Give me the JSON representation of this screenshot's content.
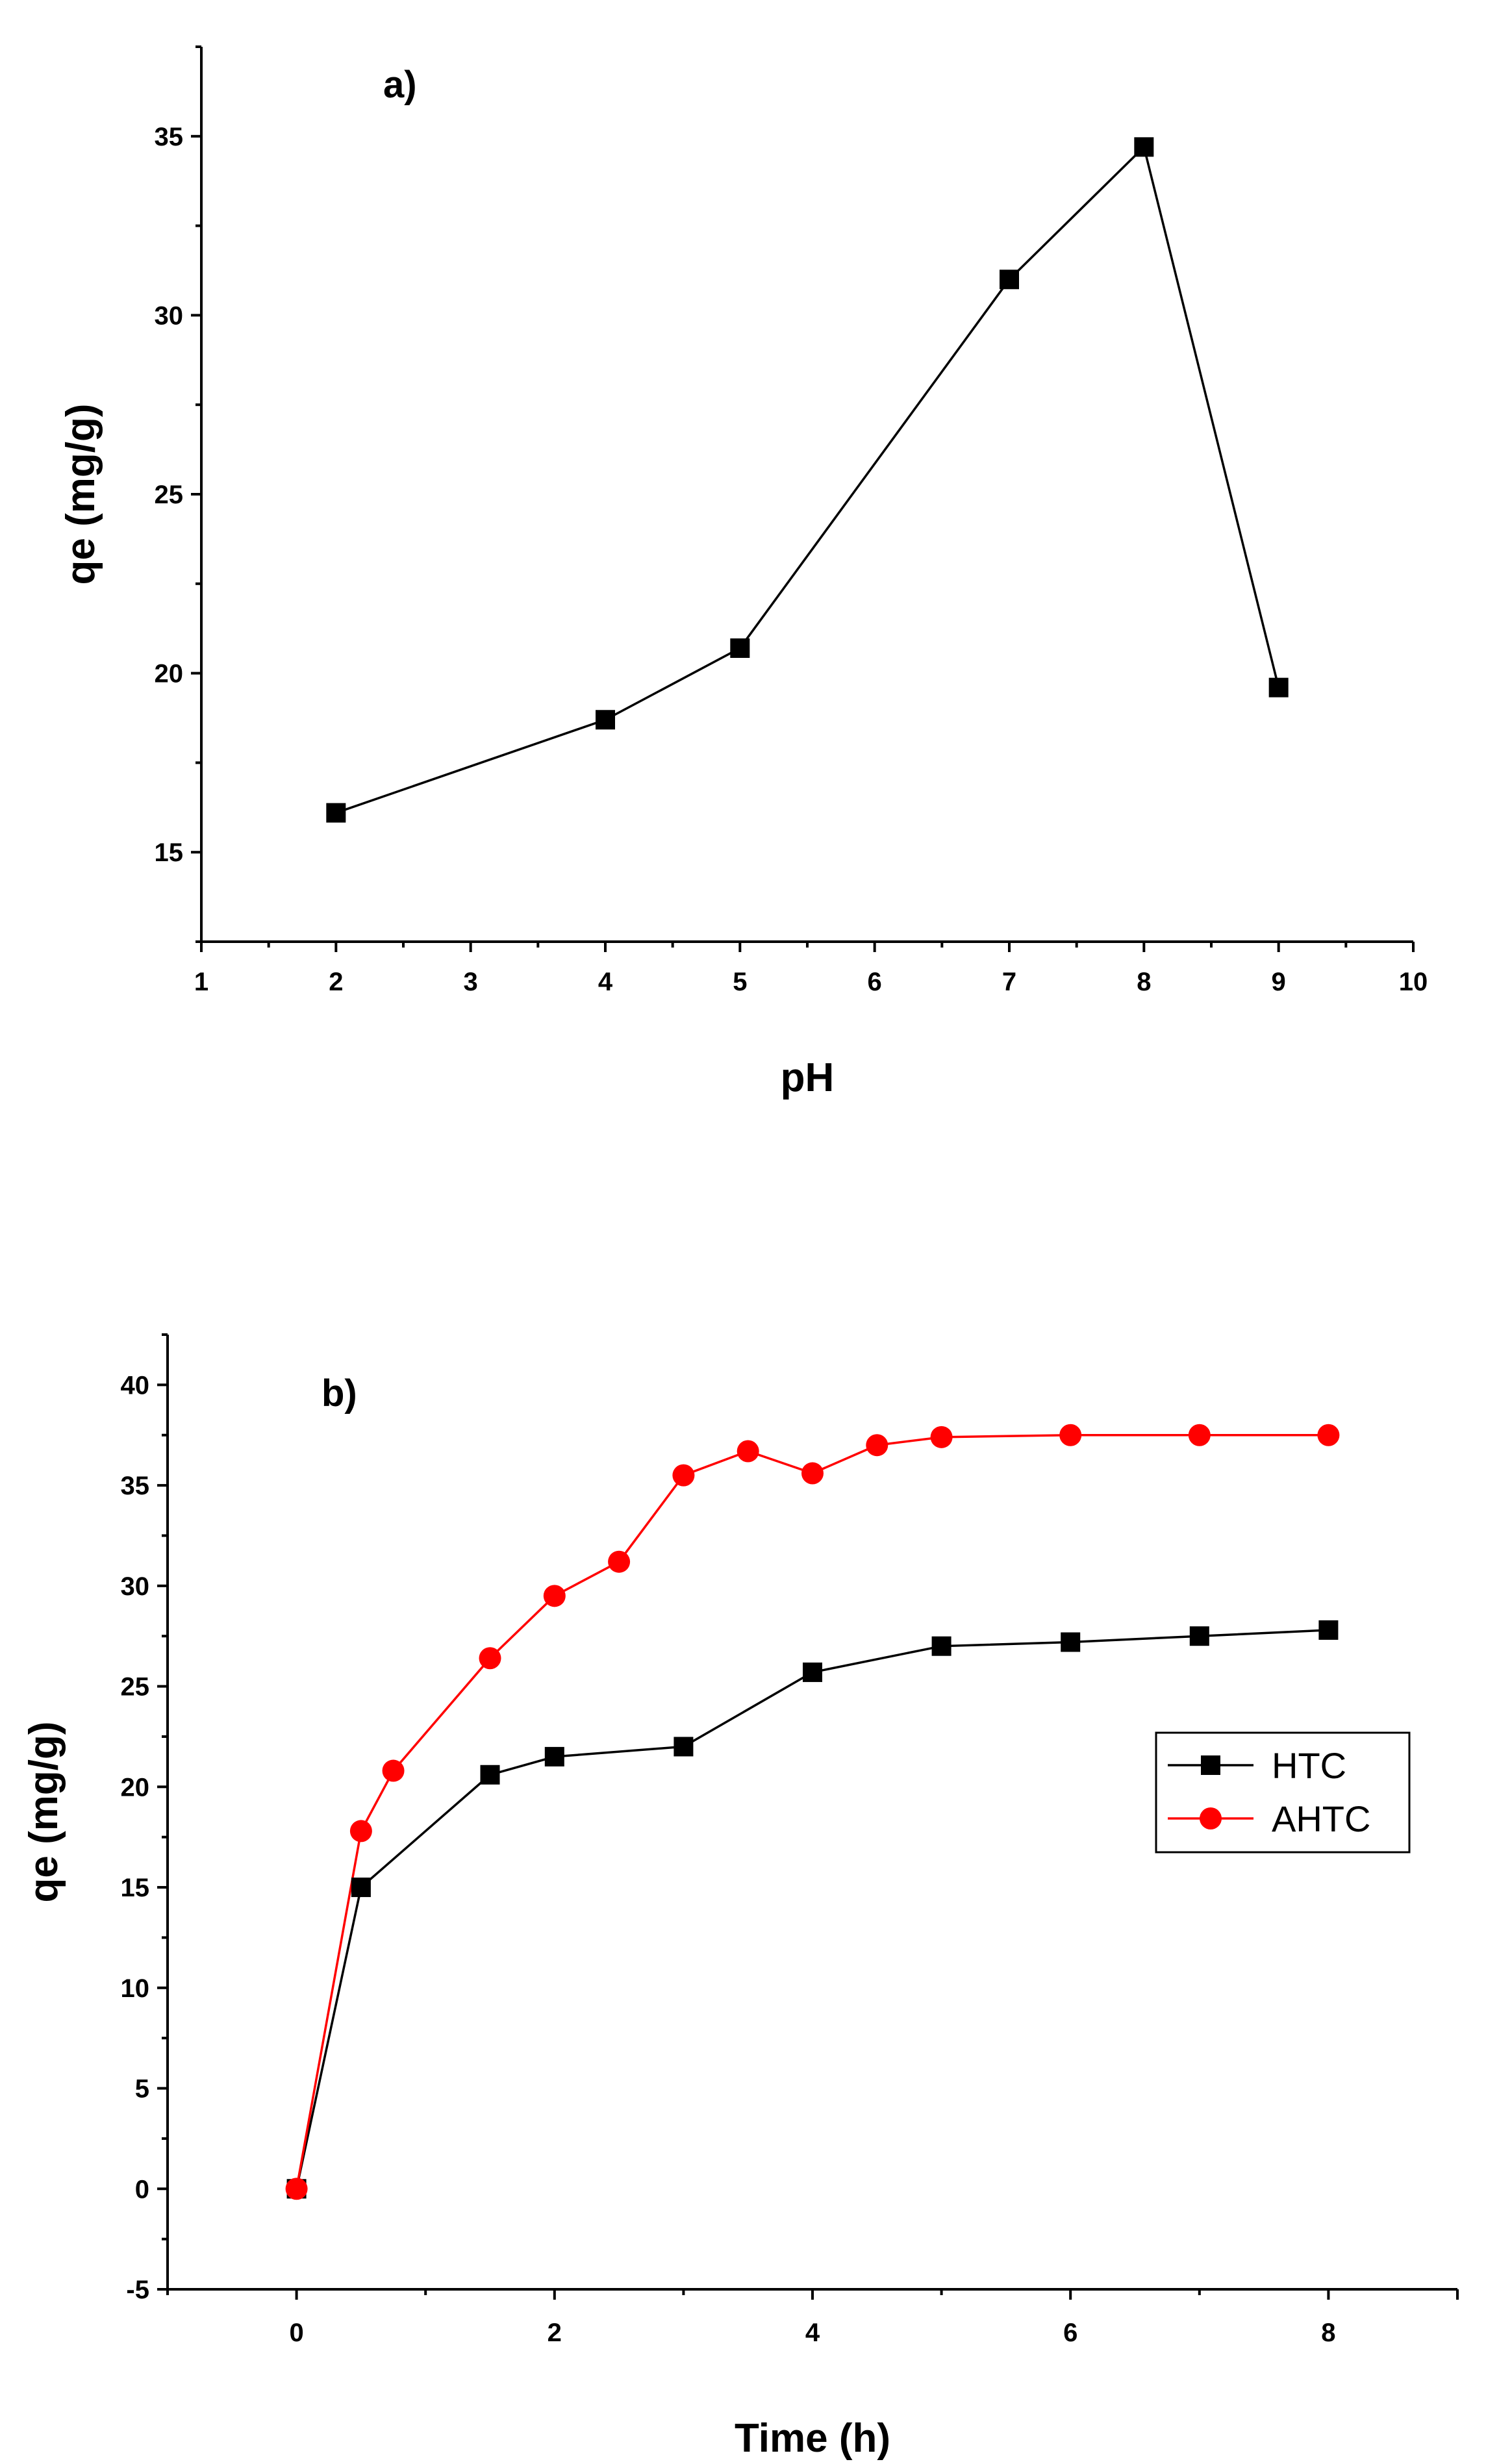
{
  "chart_data": [
    {
      "type": "line",
      "panel_label": "a)",
      "xlabel": "pH",
      "ylabel": "qe (mg/g)",
      "xlim": [
        1,
        10
      ],
      "ylim": [
        12.5,
        37.5
      ],
      "xticks": [
        1,
        2,
        3,
        4,
        5,
        6,
        7,
        8,
        9,
        10
      ],
      "yticks": [
        15,
        20,
        25,
        30,
        35
      ],
      "grid": false,
      "series": [
        {
          "marker": "square",
          "color": "#000000",
          "x": [
            2,
            4,
            5,
            7,
            8,
            9
          ],
          "values": [
            16.1,
            18.7,
            20.7,
            31.0,
            34.7,
            19.6
          ]
        }
      ]
    },
    {
      "type": "line",
      "panel_label": "b)",
      "xlabel": "Time (h)",
      "ylabel": "qe (mg/g)",
      "xlim": [
        -1,
        9
      ],
      "ylim": [
        -5,
        42.5
      ],
      "xticks": [
        0,
        2,
        4,
        6,
        8
      ],
      "yticks": [
        -5,
        0,
        5,
        10,
        15,
        20,
        25,
        30,
        35,
        40
      ],
      "grid": false,
      "legend_position": "right",
      "series": [
        {
          "name": "HTC",
          "marker": "square",
          "color": "#000000",
          "x": [
            0,
            0.5,
            1.5,
            2,
            3,
            4,
            5,
            6,
            7,
            8
          ],
          "values": [
            0,
            15.0,
            20.6,
            21.5,
            22.0,
            25.7,
            27.0,
            27.2,
            27.5,
            27.8
          ]
        },
        {
          "name": "AHTC",
          "marker": "circle",
          "color": "#ff0000",
          "x": [
            0,
            0.5,
            0.75,
            1.5,
            2,
            2.5,
            3,
            3.5,
            4,
            4.5,
            5,
            6,
            7,
            8
          ],
          "values": [
            0,
            17.8,
            20.8,
            26.4,
            29.5,
            31.2,
            35.5,
            36.7,
            35.6,
            37.0,
            37.4,
            37.5,
            37.5,
            37.5
          ]
        }
      ]
    }
  ]
}
